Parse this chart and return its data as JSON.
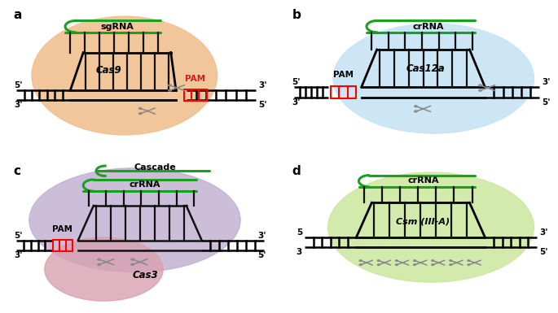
{
  "bg_color": "#ffffff",
  "panel_a": {
    "label": "a",
    "ellipse_color": "#f0c090",
    "rna_label": "sgRNA",
    "cas_label": "Cas9",
    "pam_label": "PAM",
    "pam_side": "right"
  },
  "panel_b": {
    "label": "b",
    "ellipse_color": "#c8e4f4",
    "rna_label": "crRNA",
    "cas_label": "Cas12a",
    "pam_label": "PAM",
    "pam_side": "left"
  },
  "panel_c": {
    "label": "c",
    "ellipse1_color": "#c0aed0",
    "ellipse2_color": "#d8a0b0",
    "cascade_label": "Cascade",
    "rna_label": "crRNA",
    "cas_label": "Cas3",
    "pam_label": "PAM",
    "pam_side": "left"
  },
  "panel_d": {
    "label": "d",
    "ellipse_color": "#cce8a0",
    "rna_label": "crRNA",
    "cas_label": "Csm (III-A)"
  },
  "green_color": "#18a020",
  "black_color": "#111111",
  "red_color": "#cc2020",
  "scissors_color": "#888888"
}
